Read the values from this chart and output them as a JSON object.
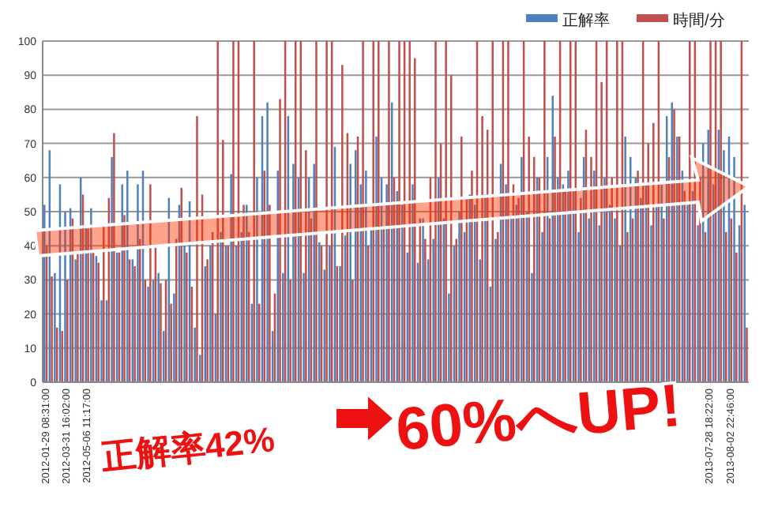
{
  "chart_data": {
    "type": "bar",
    "categories": [
      "2012-01-29 08:31:00",
      null,
      null,
      null,
      "2012-03-31 16:02:00",
      null,
      null,
      null,
      "2012-05-06 11:17:00",
      null,
      null,
      null,
      null,
      null,
      null,
      null,
      null,
      null,
      null,
      null,
      null,
      null,
      null,
      null,
      null,
      null,
      null,
      null,
      null,
      null,
      null,
      null,
      null,
      null,
      null,
      null,
      null,
      null,
      null,
      null,
      null,
      null,
      null,
      null,
      null,
      null,
      null,
      null,
      null,
      null,
      null,
      null,
      null,
      null,
      null,
      null,
      null,
      null,
      null,
      null,
      null,
      null,
      null,
      null,
      null,
      null,
      null,
      null,
      null,
      null,
      null,
      null,
      null,
      null,
      null,
      null,
      null,
      null,
      null,
      null,
      null,
      null,
      null,
      null,
      null,
      null,
      null,
      null,
      null,
      null,
      null,
      null,
      null,
      null,
      null,
      null,
      null,
      null,
      null,
      null,
      null,
      null,
      null,
      null,
      null,
      null,
      null,
      null,
      null,
      null,
      null,
      null,
      null,
      null,
      null,
      null,
      null,
      null,
      null,
      null,
      null,
      null,
      null,
      null,
      null,
      null,
      null,
      null,
      "2013-07-28 18:22:00",
      null,
      null,
      null,
      "2013-08-02 22:46:00",
      null,
      null,
      null
    ],
    "series": [
      {
        "name": "正解率",
        "color": "#4f81bd",
        "values": [
          52,
          68,
          32,
          58,
          50,
          51,
          36,
          60,
          46,
          51,
          37,
          24,
          24,
          66,
          38,
          58,
          62,
          36,
          58,
          62,
          28,
          30,
          32,
          15,
          54,
          26,
          52,
          40,
          53,
          16,
          8,
          34,
          40,
          20,
          44,
          40,
          61,
          40,
          44,
          52,
          23,
          60,
          78,
          82,
          15,
          62,
          32,
          78,
          64,
          60,
          32,
          60,
          64,
          41,
          33,
          40,
          69,
          34,
          43,
          64,
          68,
          58,
          62,
          45,
          72,
          60,
          58,
          82,
          56,
          52,
          38,
          58,
          35,
          48,
          36,
          42,
          60,
          48,
          26,
          40,
          50,
          44,
          55,
          52,
          36,
          55,
          28,
          42,
          64,
          58,
          48,
          52,
          66,
          50,
          32,
          60,
          44,
          66,
          84,
          60,
          58,
          62,
          56,
          44,
          66,
          48,
          62,
          46,
          60,
          52,
          48,
          40,
          72,
          66,
          60,
          54,
          58,
          46,
          52,
          58,
          78,
          82,
          72,
          62,
          52,
          56,
          46,
          70,
          74,
          58,
          74,
          68,
          72,
          66,
          46,
          52
        ]
      },
      {
        "name": "時間/分",
        "color": "#c0504d",
        "values": [
          40,
          31,
          16,
          15,
          30,
          48,
          38,
          55,
          45,
          38,
          35,
          46,
          54,
          73,
          38,
          49,
          36,
          34,
          42,
          30,
          58,
          40,
          29,
          30,
          23,
          42,
          57,
          38,
          28,
          78,
          55,
          36,
          44,
          100,
          71,
          40,
          100,
          100,
          52,
          44,
          100,
          23,
          62,
          52,
          26,
          83,
          100,
          30,
          100,
          100,
          68,
          48,
          100,
          40,
          100,
          100,
          34,
          93,
          73,
          30,
          72,
          100,
          40,
          100,
          100,
          45,
          100,
          60,
          100,
          100,
          100,
          95,
          48,
          42,
          60,
          100,
          70,
          100,
          90,
          42,
          72,
          54,
          62,
          100,
          78,
          74,
          100,
          44,
          100,
          100,
          58,
          54,
          100,
          72,
          66,
          60,
          100,
          48,
          72,
          100,
          56,
          100,
          100,
          54,
          74,
          66,
          100,
          88,
          100,
          60,
          100,
          100,
          44,
          48,
          62,
          100,
          70,
          76,
          100,
          48,
          66,
          80,
          72,
          56,
          100,
          100,
          60,
          44,
          100,
          100,
          100,
          44,
          48,
          38,
          100,
          16
        ]
      }
    ],
    "ylim": [
      0,
      100
    ],
    "yticks": [
      0,
      10,
      20,
      30,
      40,
      50,
      60,
      70,
      80,
      90,
      100
    ],
    "grid": "y",
    "legend": "top right",
    "annotations": [
      "正解率42%",
      "60%へUP!"
    ]
  }
}
